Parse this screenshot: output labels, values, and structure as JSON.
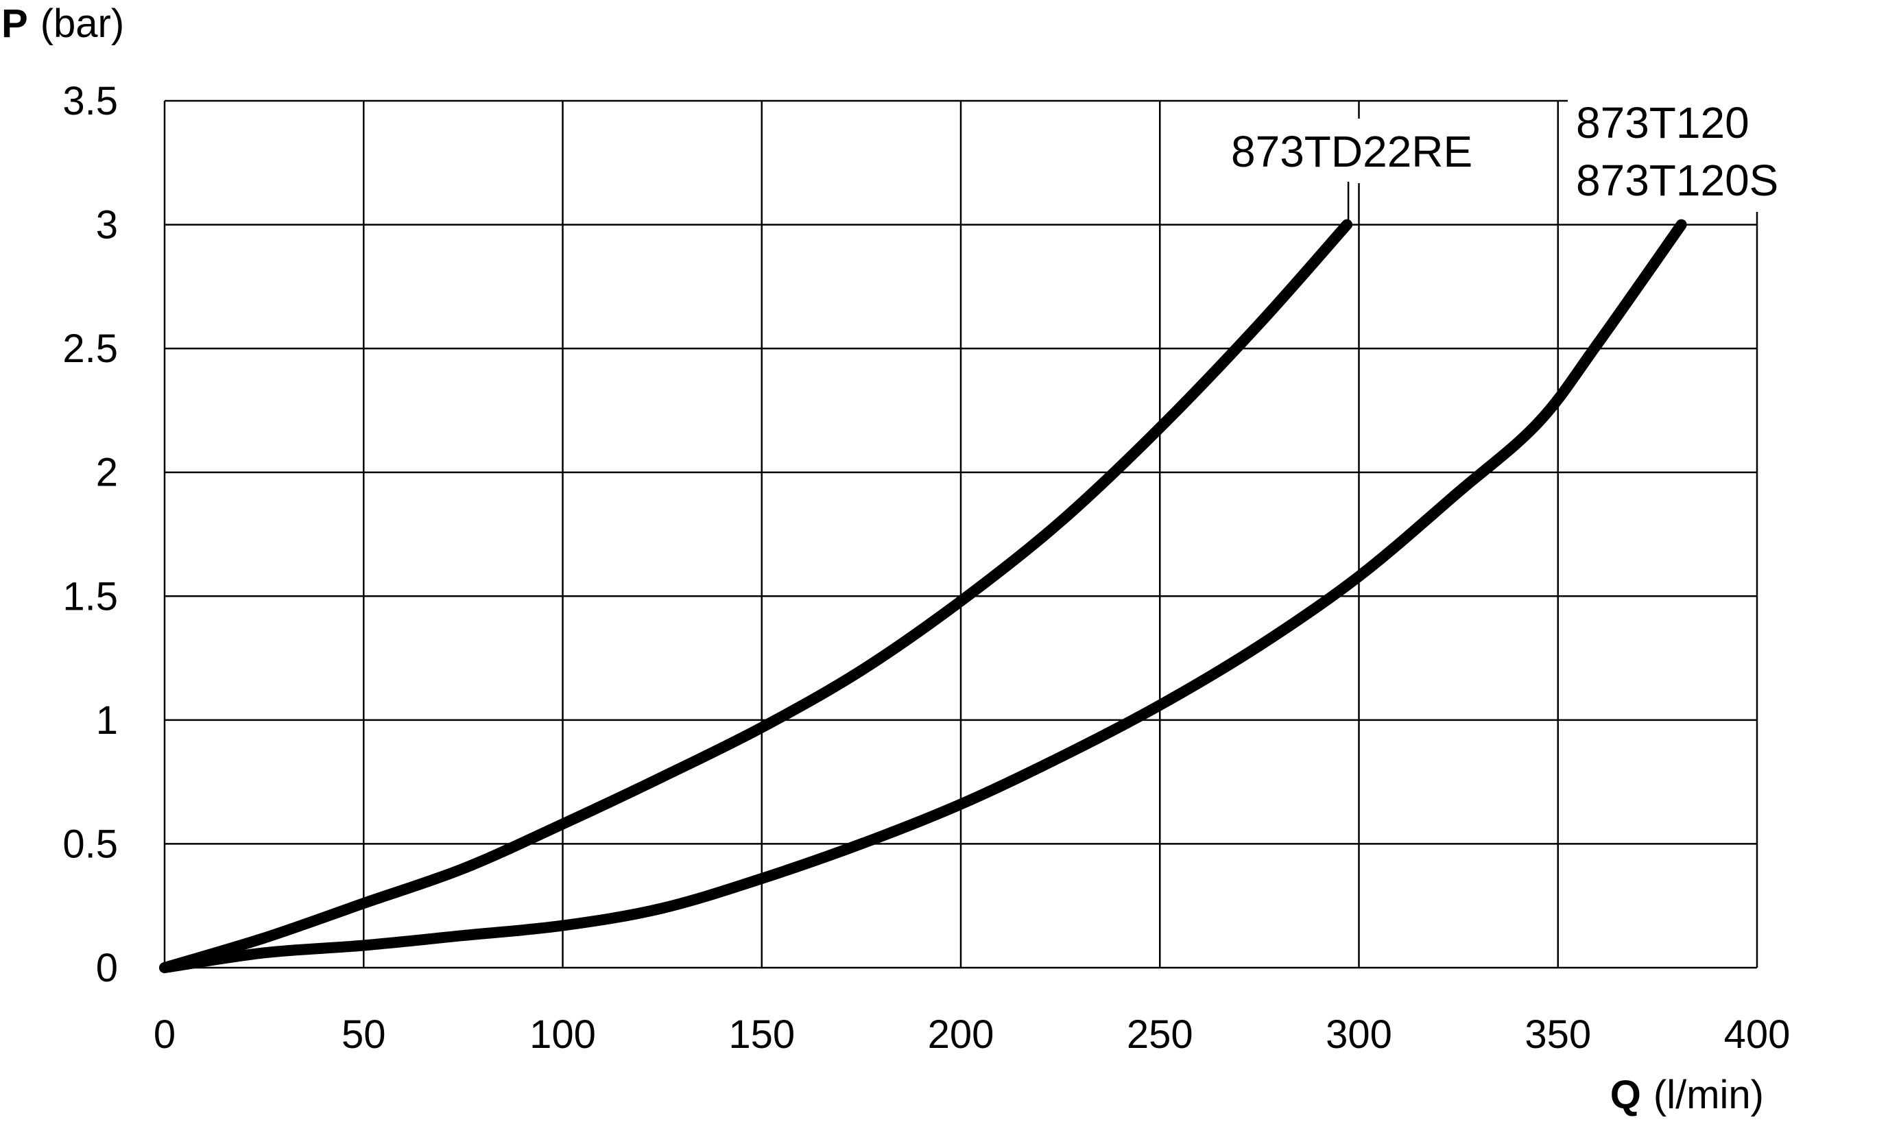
{
  "chart_data": {
    "type": "line",
    "x_axis": {
      "symbol": "Q",
      "unit": "(l/min)",
      "range": [
        0,
        400
      ],
      "ticks": [
        0,
        50,
        100,
        150,
        200,
        250,
        300,
        350,
        400
      ],
      "tick_labels": [
        "0",
        "50",
        "100",
        "150",
        "200",
        "250",
        "300",
        "350",
        "400"
      ]
    },
    "y_axis": {
      "symbol": "P",
      "unit": "(bar)",
      "range": [
        0,
        3.5
      ],
      "ticks": [
        0,
        0.5,
        1,
        1.5,
        2,
        2.5,
        3,
        3.5
      ],
      "tick_labels": [
        "0",
        "0.5",
        "1",
        "1.5",
        "2",
        "2.5",
        "3",
        "3.5"
      ]
    },
    "grid": true,
    "line_color": "#000000",
    "series": [
      {
        "labels": [
          "873TD22RE"
        ],
        "points": [
          [
            0,
            0
          ],
          [
            25,
            0.12
          ],
          [
            50,
            0.26
          ],
          [
            75,
            0.4
          ],
          [
            100,
            0.58
          ],
          [
            125,
            0.77
          ],
          [
            150,
            0.97
          ],
          [
            175,
            1.2
          ],
          [
            200,
            1.48
          ],
          [
            225,
            1.8
          ],
          [
            250,
            2.18
          ],
          [
            275,
            2.6
          ],
          [
            297,
            3.0
          ]
        ]
      },
      {
        "labels": [
          "873T120",
          "873T120S"
        ],
        "points": [
          [
            0,
            0
          ],
          [
            25,
            0.06
          ],
          [
            50,
            0.09
          ],
          [
            75,
            0.13
          ],
          [
            100,
            0.17
          ],
          [
            125,
            0.24
          ],
          [
            150,
            0.36
          ],
          [
            175,
            0.5
          ],
          [
            200,
            0.66
          ],
          [
            225,
            0.85
          ],
          [
            250,
            1.06
          ],
          [
            275,
            1.3
          ],
          [
            300,
            1.58
          ],
          [
            325,
            1.92
          ],
          [
            345,
            2.2
          ],
          [
            360,
            2.52
          ],
          [
            381,
            3.0
          ]
        ]
      }
    ]
  }
}
